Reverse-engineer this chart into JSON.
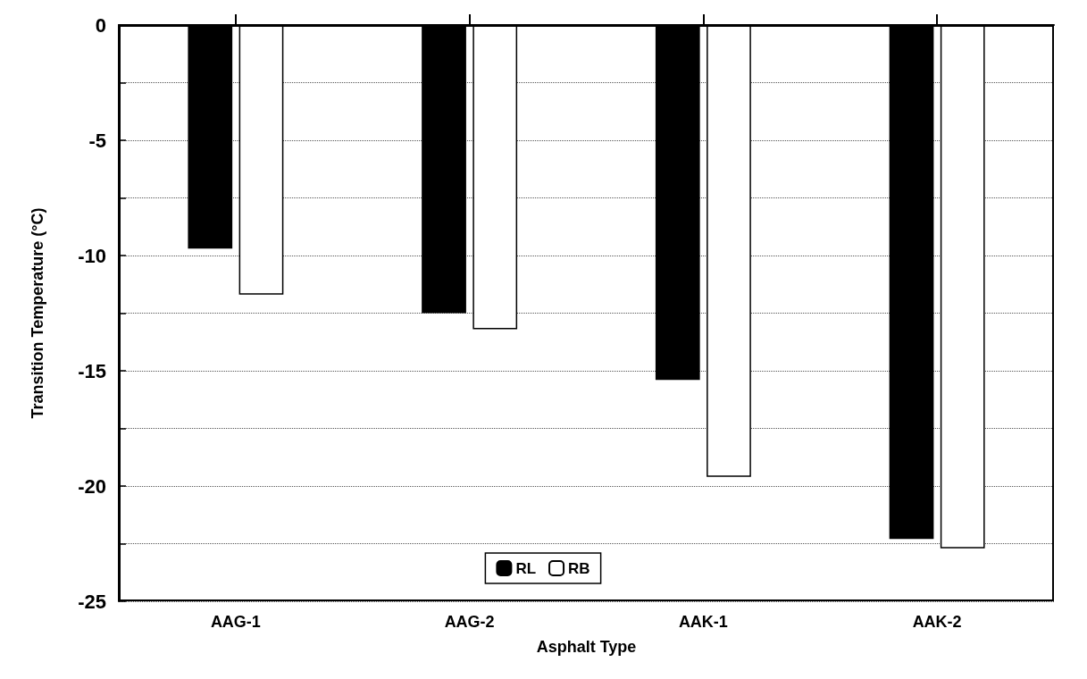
{
  "chart_data": {
    "type": "bar",
    "xlabel": "Asphalt Type",
    "ylabel": "Transition Temperature (°C)",
    "categories": [
      "AAG-1",
      "AAG-2",
      "AAK-1",
      "AAK-2"
    ],
    "series": [
      {
        "name": "RL",
        "color": "#000000",
        "values": [
          -9.7,
          -12.5,
          -15.4,
          -22.3
        ]
      },
      {
        "name": "RB",
        "color": "#ffffff",
        "values": [
          -11.7,
          -13.2,
          -19.6,
          -22.7
        ]
      }
    ],
    "ylim": [
      -25,
      0
    ],
    "yticks": [
      -25,
      {
        "value": -22.5,
        "label": null
      },
      -20,
      {
        "value": -17.5,
        "label": null
      },
      -15,
      {
        "value": -12.5,
        "label": null
      },
      -10,
      {
        "value": -7.5,
        "label": null
      },
      -5,
      {
        "value": -2.5,
        "label": null
      },
      0
    ],
    "grid": "y",
    "legend": "bottom"
  }
}
